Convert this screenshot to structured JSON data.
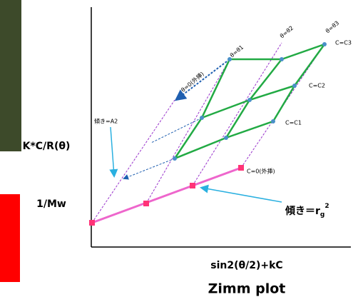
{
  "diagram": {
    "title": "Zimm plot",
    "y_axis_label": "K*C/R(θ)",
    "x_axis_label": "sin2(θ/2)+kC",
    "intercept_label": "1/Mw",
    "angle_labels": [
      "θ=0(外挿)",
      "θ=θ1",
      "θ=θ2",
      "θ=θ3"
    ],
    "concentration_labels": [
      "C=0(外挿)",
      "C=C1",
      "C=C2",
      "C=C3"
    ],
    "slope_a2_label": "傾き=A2",
    "slope_rg_label": {
      "text": "傾き＝r",
      "sub": "g",
      "sup": "2"
    }
  }
}
